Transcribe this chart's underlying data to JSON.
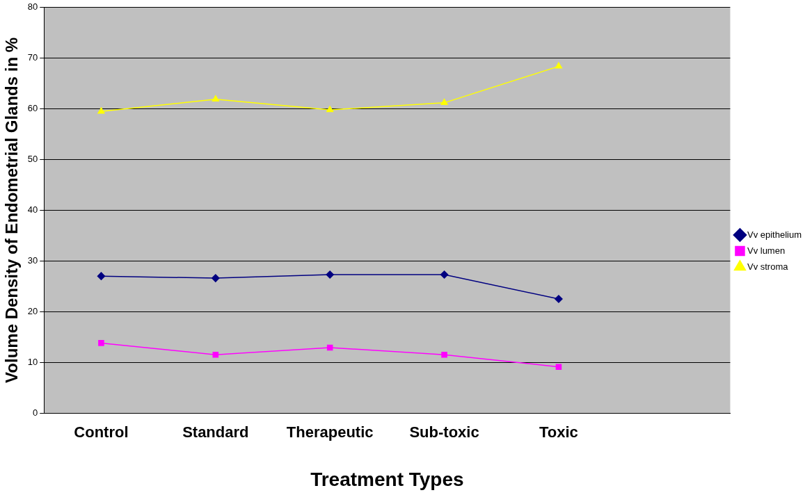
{
  "chart_data": {
    "type": "line",
    "xlabel": "Treatment Types",
    "ylabel": "Volume Density of Endometrial Glands in %",
    "categories": [
      "Control",
      "Standard",
      "Therapeutic",
      "Sub-toxic",
      "Toxic",
      null
    ],
    "ylim": [
      0,
      80
    ],
    "yticks": [
      0,
      10,
      20,
      30,
      40,
      50,
      60,
      70,
      80
    ],
    "grid": "y",
    "legend": "right",
    "series": [
      {
        "name": "Vv epithelium",
        "color": "#000080",
        "marker": "diamond",
        "values": [
          27.0,
          26.6,
          27.3,
          27.3,
          22.5,
          null
        ]
      },
      {
        "name": "Vv lumen",
        "color": "#ff00ff",
        "marker": "square",
        "values": [
          13.8,
          11.5,
          12.9,
          11.5,
          9.1,
          null
        ]
      },
      {
        "name": "Vv stroma",
        "color": "#ffff00",
        "marker": "triangle",
        "values": [
          59.5,
          61.9,
          59.8,
          61.2,
          68.4,
          null
        ]
      }
    ]
  }
}
